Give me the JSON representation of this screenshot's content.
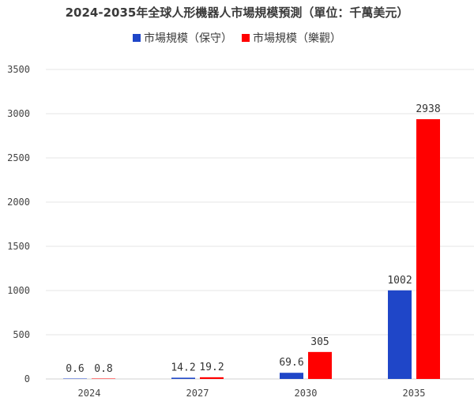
{
  "chart_data": {
    "type": "bar",
    "title": "2024-2035年全球人形機器人市場規模預測（單位：千萬美元）",
    "categories": [
      "2024",
      "2027",
      "2030",
      "2035"
    ],
    "series": [
      {
        "name": "市場規模（保守）",
        "values": [
          0.6,
          14.2,
          69.6,
          1002
        ],
        "labels": [
          "0.6",
          "14.2",
          "69.6",
          "1002"
        ],
        "color": "#1f46c8"
      },
      {
        "name": "市場規模（樂觀）",
        "values": [
          0.8,
          19.2,
          305,
          2938
        ],
        "labels": [
          "0.8",
          "19.2",
          "305",
          "2938"
        ],
        "color": "#ff0000"
      }
    ],
    "yticks": [
      "0",
      "500",
      "1000",
      "1500",
      "2000",
      "2500",
      "3000",
      "3500"
    ],
    "ylim": [
      0,
      3500
    ],
    "grid": true,
    "legend": "top-center"
  }
}
